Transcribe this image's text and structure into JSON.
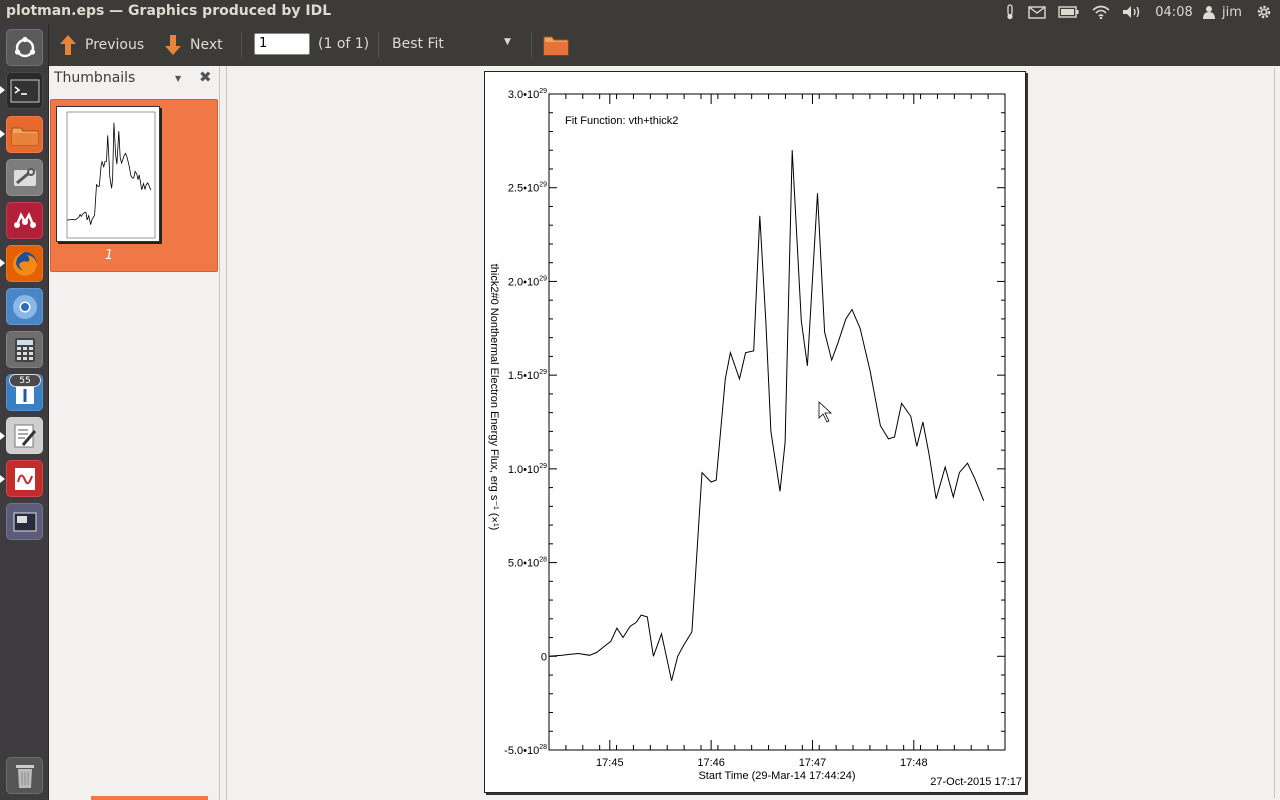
{
  "window": {
    "title": "plotman.eps — Graphics produced by IDL"
  },
  "tray": {
    "time": "04:08",
    "user": "jim"
  },
  "launcher": {
    "badge_count": "55"
  },
  "toolbar": {
    "previous_label": "Previous",
    "next_label": "Next",
    "page_value": "1",
    "page_count": "(1 of 1)",
    "zoom_value": "Best Fit"
  },
  "sidebar": {
    "title": "Thumbnails",
    "thumb_number": "1"
  },
  "colors": {
    "accent": "#f07746",
    "panel": "#3c3b37",
    "launcher": "#3e3c3e"
  },
  "chart_data": {
    "type": "line",
    "title": "Fit Function: vth+thick2",
    "xlabel": "Start Time (29-Mar-14 17:44:24)",
    "ylabel": "thick2#0 Nonthermal Electron Energy Flux, erg s⁻¹ (×¹)",
    "footer": "27-Oct-2015 17:17",
    "x_unit": "minutes after 17:44:24",
    "xlim": [
      0,
      4.5
    ],
    "ylim": [
      -5e+28,
      3e+29
    ],
    "x_ticks": [
      {
        "label": "17:45",
        "x": 0.6
      },
      {
        "label": "17:46",
        "x": 1.6
      },
      {
        "label": "17:47",
        "x": 2.6
      },
      {
        "label": "17:48",
        "x": 3.6
      }
    ],
    "y_ticks": [
      {
        "mant": "-5.0•10",
        "exp": "28",
        "value": -5e+28
      },
      {
        "mant": "0",
        "exp": "",
        "value": 0
      },
      {
        "mant": "5.0•10",
        "exp": "28",
        "value": 5e+28
      },
      {
        "mant": "1.0•10",
        "exp": "29",
        "value": 1e+29
      },
      {
        "mant": "1.5•10",
        "exp": "29",
        "value": 1.5e+29
      },
      {
        "mant": "2.0•10",
        "exp": "29",
        "value": 2e+29
      },
      {
        "mant": "2.5•10",
        "exp": "29",
        "value": 2.5e+29
      },
      {
        "mant": "3.0•10",
        "exp": "29",
        "value": 3e+29
      }
    ],
    "x": [
      0.0,
      0.13,
      0.2,
      0.29,
      0.4,
      0.47,
      0.54,
      0.61,
      0.67,
      0.73,
      0.8,
      0.86,
      0.91,
      0.97,
      1.03,
      1.11,
      1.21,
      1.27,
      1.33,
      1.41,
      1.51,
      1.6,
      1.65,
      1.74,
      1.79,
      1.88,
      1.94,
      2.02,
      2.08,
      2.14,
      2.19,
      2.28,
      2.33,
      2.4,
      2.49,
      2.55,
      2.65,
      2.72,
      2.79,
      2.85,
      2.93,
      2.99,
      3.07,
      3.17,
      3.27,
      3.35,
      3.41,
      3.48,
      3.57,
      3.63,
      3.69,
      3.75,
      3.82,
      3.91,
      3.99,
      4.05,
      4.13,
      4.2,
      4.29
    ],
    "y": [
      0.0,
      5e+26,
      1e+27,
      1.5e+27,
      5e+26,
      2e+27,
      5e+27,
      8e+27,
      1.5e+28,
      1e+28,
      1.6e+28,
      1.8e+28,
      2.2e+28,
      2.1e+28,
      0.0,
      1.2e+28,
      -1.3e+28,
      0.0,
      6e+27,
      1.3e+28,
      9.8e+28,
      9.3e+28,
      9.4e+28,
      1.48e+29,
      1.62e+29,
      1.48e+29,
      1.62e+29,
      1.63e+29,
      2.35e+29,
      1.78e+29,
      1.2e+29,
      8.8e+28,
      1.14e+29,
      2.7e+29,
      1.79e+29,
      1.55e+29,
      2.47e+29,
      1.73e+29,
      1.58e+29,
      1.67e+29,
      1.8e+29,
      1.85e+29,
      1.75e+29,
      1.52e+29,
      1.23e+29,
      1.16e+29,
      1.17e+29,
      1.35e+29,
      1.28e+29,
      1.12e+29,
      1.25e+29,
      1.08e+29,
      8.4e+28,
      1.01e+29,
      8.5e+28,
      9.8e+28,
      1.03e+29,
      9.5e+28,
      8.3e+28
    ]
  }
}
